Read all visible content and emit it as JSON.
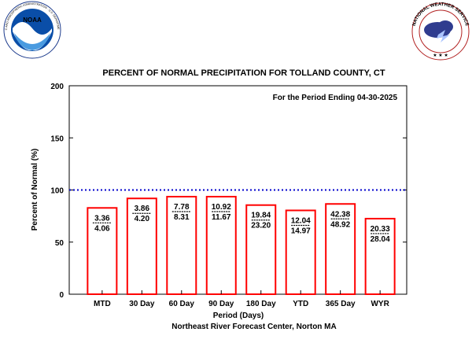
{
  "logos": {
    "left": {
      "icon": "noaa-logo-icon",
      "text": "NATIONAL OCEANIC AND ATMOSPHERIC ADMINISTRATION · U.S. DEPARTMENT OF COMMERCE",
      "center_text": "NOAA"
    },
    "right": {
      "icon": "national-weather-service-logo-icon",
      "text": "NATIONAL WEATHER SERVICE"
    }
  },
  "colors": {
    "bar": "#ff0000",
    "normal_line": "#0000cc",
    "noaa_blue": "#0a4ea8",
    "nws_cloud": "#2f3c8f"
  },
  "chart_data": {
    "type": "bar",
    "title": "PERCENT OF NORMAL PRECIPITATION FOR TOLLAND COUNTY, CT",
    "annotation": "For the Period Ending 04-30-2025",
    "xlabel": "Period (Days)",
    "ylabel": "Percent of Normal (%)",
    "footer": "Northeast River Forecast Center, Norton MA",
    "ylim": [
      0,
      200
    ],
    "yticks": [
      "0",
      "50",
      "100",
      "150",
      "200"
    ],
    "reference_line": 100,
    "categories": [
      "MTD",
      "30 Day",
      "60 Day",
      "90 Day",
      "180 Day",
      "YTD",
      "365 Day",
      "WYR"
    ],
    "values": [
      82.8,
      91.9,
      93.6,
      93.6,
      85.5,
      80.4,
      86.6,
      72.5
    ],
    "observed": [
      "3.36",
      "3.86",
      "7.78",
      "10.92",
      "19.84",
      "12.04",
      "42.38",
      "20.33"
    ],
    "normal": [
      "4.06",
      "4.20",
      "8.31",
      "11.67",
      "23.20",
      "14.97",
      "48.92",
      "28.04"
    ],
    "grid": false,
    "legend": "none"
  }
}
